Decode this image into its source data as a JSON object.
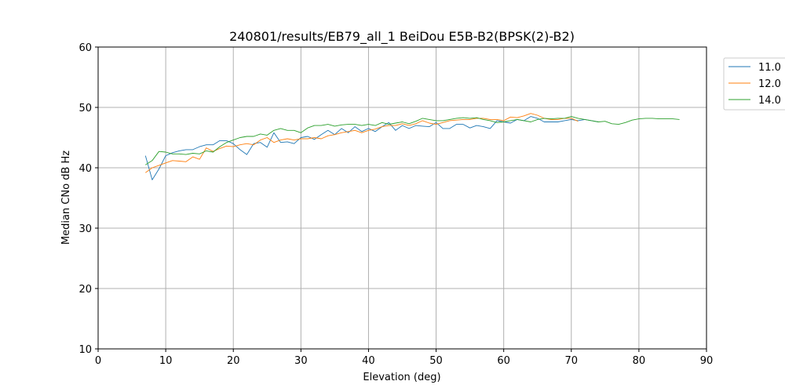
{
  "chart_data": {
    "type": "line",
    "title": "240801/results/EB79_all_1 BeiDou E5B-B2(BPSK(2)-B2)",
    "xlabel": "Elevation (deg)",
    "ylabel": "Median CNo dB Hz",
    "xlim": [
      0,
      90
    ],
    "ylim": [
      10,
      60
    ],
    "xticks": [
      "0",
      "10",
      "20",
      "30",
      "40",
      "50",
      "60",
      "70",
      "80",
      "90"
    ],
    "yticks": [
      "10",
      "20",
      "30",
      "40",
      "50",
      "60"
    ],
    "grid": true,
    "legend_position": "outside-top-right",
    "series": [
      {
        "name": "11.0",
        "color": "#1f77b4",
        "x": [
          7,
          8,
          9,
          10,
          11,
          12,
          13,
          14,
          15,
          16,
          17,
          18,
          19,
          20,
          21,
          22,
          23,
          24,
          25,
          26,
          27,
          28,
          29,
          30,
          31,
          32,
          33,
          34,
          35,
          36,
          37,
          38,
          39,
          40,
          41,
          42,
          43,
          44,
          45,
          46,
          47,
          48,
          49,
          50,
          51,
          52,
          53,
          54,
          55,
          56,
          57,
          58,
          59,
          60,
          61,
          62,
          63,
          64,
          65,
          66,
          67,
          68,
          69,
          70,
          71,
          72,
          73,
          74
        ],
        "y": [
          42.0,
          38.0,
          39.8,
          42.0,
          42.5,
          42.8,
          43.0,
          43.0,
          43.5,
          43.8,
          43.8,
          44.5,
          44.5,
          44.0,
          43.0,
          42.2,
          44.0,
          44.2,
          43.4,
          45.8,
          44.2,
          44.3,
          44.0,
          45.0,
          45.2,
          44.7,
          45.5,
          46.2,
          45.5,
          46.5,
          45.8,
          46.8,
          46.0,
          46.5,
          46.0,
          46.8,
          47.5,
          46.2,
          47.0,
          46.5,
          47.0,
          46.9,
          46.8,
          47.5,
          46.5,
          46.5,
          47.2,
          47.2,
          46.6,
          47.0,
          46.8,
          46.5,
          47.8,
          47.6,
          47.4,
          48.0,
          47.8,
          48.5,
          48.2,
          47.6,
          47.6,
          47.6,
          47.8,
          48.0,
          47.8,
          48.0,
          47.8,
          47.6
        ]
      },
      {
        "name": "12.0",
        "color": "#ff7f0e",
        "x": [
          7,
          8,
          9,
          10,
          11,
          12,
          13,
          14,
          15,
          16,
          17,
          18,
          19,
          20,
          21,
          22,
          23,
          24,
          25,
          26,
          27,
          28,
          29,
          30,
          31,
          32,
          33,
          34,
          35,
          36,
          37,
          38,
          39,
          40,
          41,
          42,
          43,
          44,
          45,
          46,
          47,
          48,
          49,
          50,
          51,
          52,
          53,
          54,
          55,
          56,
          57,
          58,
          59,
          60,
          61,
          62,
          63,
          64,
          65,
          66,
          67,
          68,
          69,
          70,
          71
        ],
        "y": [
          39.2,
          40.0,
          40.4,
          40.8,
          41.2,
          41.1,
          41.0,
          41.8,
          41.4,
          43.3,
          42.7,
          43.2,
          43.6,
          43.5,
          43.8,
          44.0,
          43.8,
          44.6,
          45.0,
          44.2,
          44.6,
          44.8,
          44.6,
          44.8,
          44.8,
          45.0,
          44.8,
          45.3,
          45.5,
          45.8,
          46.0,
          46.2,
          45.8,
          46.2,
          46.4,
          46.8,
          47.0,
          47.0,
          47.3,
          47.0,
          47.3,
          47.8,
          47.4,
          47.2,
          47.5,
          47.8,
          47.9,
          48.0,
          48.0,
          48.2,
          48.2,
          48.0,
          48.0,
          47.8,
          48.4,
          48.3,
          48.6,
          49.0,
          48.7,
          48.2,
          48.0,
          48.0,
          48.2,
          48.2,
          47.7
        ]
      },
      {
        "name": "14.0",
        "color": "#2ca02c",
        "x": [
          7,
          8,
          9,
          10,
          11,
          12,
          13,
          14,
          15,
          16,
          17,
          18,
          19,
          20,
          21,
          22,
          23,
          24,
          25,
          26,
          27,
          28,
          29,
          30,
          31,
          32,
          33,
          34,
          35,
          36,
          37,
          38,
          39,
          40,
          41,
          42,
          43,
          44,
          45,
          46,
          47,
          48,
          49,
          50,
          51,
          52,
          53,
          54,
          55,
          56,
          57,
          58,
          59,
          60,
          61,
          62,
          63,
          64,
          65,
          66,
          67,
          68,
          69,
          70,
          71,
          72,
          73,
          74,
          75,
          76,
          77,
          78,
          79,
          80,
          81,
          82,
          83,
          84,
          85,
          86
        ],
        "y": [
          40.5,
          41.2,
          42.7,
          42.6,
          42.3,
          42.3,
          42.2,
          42.4,
          42.3,
          42.8,
          42.6,
          43.5,
          44.2,
          44.6,
          45.0,
          45.2,
          45.2,
          45.6,
          45.4,
          46.2,
          46.5,
          46.2,
          46.2,
          45.8,
          46.6,
          47.0,
          47.0,
          47.2,
          46.9,
          47.1,
          47.2,
          47.2,
          47.0,
          47.2,
          47.0,
          47.5,
          47.2,
          47.4,
          47.6,
          47.3,
          47.7,
          48.2,
          48.0,
          47.8,
          47.8,
          48.0,
          48.2,
          48.3,
          48.2,
          48.3,
          48.0,
          47.8,
          47.5,
          47.6,
          47.8,
          48.0,
          47.8,
          47.6,
          48.0,
          48.2,
          48.1,
          48.2,
          48.2,
          48.5,
          48.2,
          48.0,
          47.8,
          47.6,
          47.7,
          47.3,
          47.2,
          47.5,
          47.9,
          48.1,
          48.2,
          48.2,
          48.1,
          48.1,
          48.1,
          48.0
        ]
      }
    ]
  }
}
